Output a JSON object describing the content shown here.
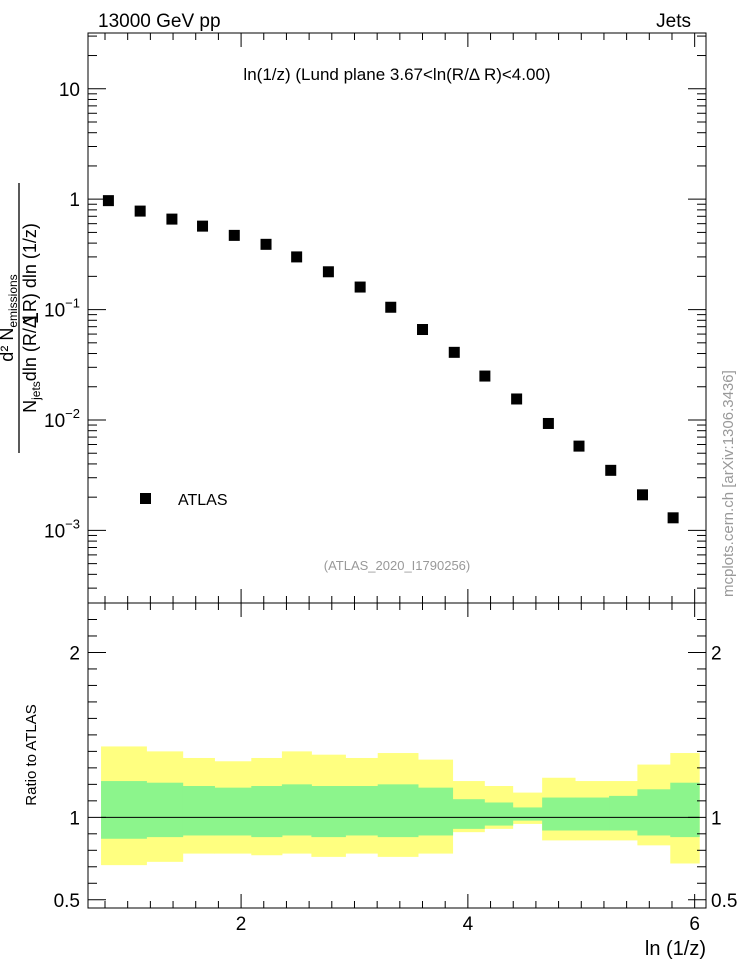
{
  "header": {
    "left": "13000 GeV pp",
    "right": "Jets"
  },
  "side_label": "mcplots.cern.ch [arXiv:1306.3436]",
  "colors": {
    "yellow_band": "#ffff80",
    "green_band": "#8cf58c",
    "marker": "#000000",
    "analysis_label": "#999999"
  },
  "chart_data": [
    {
      "type": "scatter",
      "title": "ln(1/z) (Lund plane 3.67<ln(R/Δ R)<4.00)",
      "analysis_id": "(ATLAS_2020_I1790256)",
      "xlabel": "ln (1/z)",
      "ylabel": {
        "prefix": "1",
        "frac_num": "d² N",
        "frac_num_sub": "emissions",
        "frac_den_pre": "N",
        "frac_den_sub": "jets",
        "frac_den_post": "dln (R/Δ R) dln (1/z)"
      },
      "yscale": "log",
      "xlim": [
        0.65,
        6.1
      ],
      "ylim": [
        0.00022,
        32
      ],
      "x_ticks": [
        2,
        4,
        6
      ],
      "x_tick_labels": [
        "2",
        "4",
        "6"
      ],
      "y_ticks": [
        10,
        1,
        0.1,
        0.01,
        0.001
      ],
      "y_tick_labels": [
        {
          "base": "10",
          "exp": ""
        },
        {
          "base": "1",
          "exp": ""
        },
        {
          "base": "10",
          "exp": "−1"
        },
        {
          "base": "10",
          "exp": "−2"
        },
        {
          "base": "10",
          "exp": "−3"
        }
      ],
      "legend": {
        "entry": "ATLAS",
        "position": "bottom-left"
      },
      "series": [
        {
          "name": "ATLAS",
          "x": [
            0.83,
            1.11,
            1.39,
            1.66,
            1.94,
            2.22,
            2.49,
            2.77,
            3.05,
            3.32,
            3.6,
            3.88,
            4.15,
            4.43,
            4.71,
            4.98,
            5.26,
            5.54,
            5.81
          ],
          "y": [
            0.97,
            0.78,
            0.66,
            0.57,
            0.47,
            0.39,
            0.3,
            0.22,
            0.16,
            0.105,
            0.066,
            0.041,
            0.025,
            0.0155,
            0.0093,
            0.0058,
            0.0035,
            0.0021,
            0.0013
          ]
        }
      ]
    },
    {
      "type": "area",
      "ylabel": "Ratio to ATLAS",
      "xlim": [
        0.65,
        6.1
      ],
      "ylim": [
        0.45,
        2.3
      ],
      "y_ticks": [
        0.5,
        1,
        2
      ],
      "y_tick_labels": [
        "0.5",
        "1",
        "2"
      ],
      "x_ticks": [
        2,
        4,
        6
      ],
      "bin_edges": [
        0.765,
        1.165,
        1.485,
        1.765,
        2.09,
        2.36,
        2.62,
        2.92,
        3.205,
        3.56,
        3.865,
        4.145,
        4.395,
        4.655,
        4.945,
        5.245,
        5.495,
        5.785,
        6.04
      ],
      "bands": [
        {
          "name": "yellow",
          "lo": [
            0.71,
            0.73,
            0.78,
            0.78,
            0.77,
            0.78,
            0.76,
            0.78,
            0.76,
            0.78,
            0.91,
            0.93,
            0.96,
            0.86,
            0.86,
            0.86,
            0.83,
            0.72,
            0.84
          ],
          "hi": [
            1.43,
            1.4,
            1.36,
            1.34,
            1.36,
            1.4,
            1.38,
            1.36,
            1.39,
            1.35,
            1.22,
            1.19,
            1.15,
            1.24,
            1.22,
            1.22,
            1.32,
            1.39,
            1.29
          ]
        },
        {
          "name": "green",
          "lo": [
            0.87,
            0.88,
            0.89,
            0.89,
            0.88,
            0.89,
            0.88,
            0.89,
            0.88,
            0.89,
            0.93,
            0.95,
            0.98,
            0.92,
            0.92,
            0.92,
            0.89,
            0.88,
            0.9
          ],
          "hi": [
            1.22,
            1.21,
            1.19,
            1.18,
            1.19,
            1.2,
            1.19,
            1.19,
            1.2,
            1.18,
            1.11,
            1.09,
            1.06,
            1.12,
            1.12,
            1.13,
            1.17,
            1.21,
            1.15
          ]
        }
      ],
      "reference_line": 1
    }
  ]
}
